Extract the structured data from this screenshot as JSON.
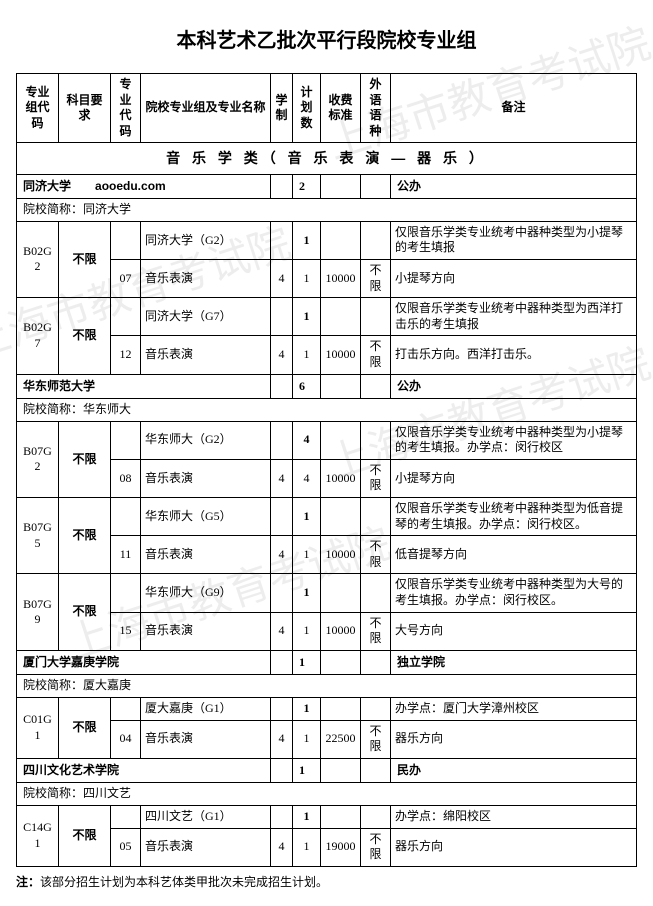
{
  "title": "本科艺术乙批次平行段院校专业组",
  "watermark": "上海市教育考试院",
  "aooedu": "aooedu.com",
  "headers": {
    "group_code": "专业组代码",
    "subject_req": "科目要求",
    "pro_code": "专业代码",
    "school_pro_name": "院校专业组及专业名称",
    "duration": "学制",
    "plan": "计划数",
    "fee": "收费标准",
    "lang": "外语语种",
    "note": "备注"
  },
  "section_title": "音 乐 学 类（ 音 乐 表 演 — 器 乐 ）",
  "alias_prefix": "院校简称：",
  "schools": [
    {
      "name": "同济大学",
      "alias": "同济大学",
      "plan_total": "2",
      "school_note": "公办",
      "groups": [
        {
          "code": "B02G2",
          "subj": "不限",
          "group_name": "同济大学（G2）",
          "group_plan": "1",
          "group_note": "仅限音乐学类专业统考中器种类型为小提琴的考生填报",
          "lines": [
            {
              "pcode": "07",
              "pname": "音乐表演",
              "dur": "4",
              "plan": "1",
              "fee": "10000",
              "lang": "不限",
              "note": "小提琴方向"
            }
          ]
        },
        {
          "code": "B02G7",
          "subj": "不限",
          "group_name": "同济大学（G7）",
          "group_plan": "1",
          "group_note": "仅限音乐学类专业统考中器种类型为西洋打击乐的考生填报",
          "lines": [
            {
              "pcode": "12",
              "pname": "音乐表演",
              "dur": "4",
              "plan": "1",
              "fee": "10000",
              "lang": "不限",
              "note": "打击乐方向。西洋打击乐。"
            }
          ]
        }
      ]
    },
    {
      "name": "华东师范大学",
      "alias": "华东师大",
      "plan_total": "6",
      "school_note": "公办",
      "groups": [
        {
          "code": "B07G2",
          "subj": "不限",
          "group_name": "华东师大（G2）",
          "group_plan": "4",
          "group_note": "仅限音乐学类专业统考中器种类型为小提琴的考生填报。办学点：闵行校区",
          "lines": [
            {
              "pcode": "08",
              "pname": "音乐表演",
              "dur": "4",
              "plan": "4",
              "fee": "10000",
              "lang": "不限",
              "note": "小提琴方向"
            }
          ]
        },
        {
          "code": "B07G5",
          "subj": "不限",
          "group_name": "华东师大（G5）",
          "group_plan": "1",
          "group_note": "仅限音乐学类专业统考中器种类型为低音提琴的考生填报。办学点：闵行校区。",
          "lines": [
            {
              "pcode": "11",
              "pname": "音乐表演",
              "dur": "4",
              "plan": "1",
              "fee": "10000",
              "lang": "不限",
              "note": "低音提琴方向"
            }
          ]
        },
        {
          "code": "B07G9",
          "subj": "不限",
          "group_name": "华东师大（G9）",
          "group_plan": "1",
          "group_note": "仅限音乐学类专业统考中器种类型为大号的考生填报。办学点：闵行校区。",
          "lines": [
            {
              "pcode": "15",
              "pname": "音乐表演",
              "dur": "4",
              "plan": "1",
              "fee": "10000",
              "lang": "不限",
              "note": "大号方向"
            }
          ]
        }
      ]
    },
    {
      "name": "厦门大学嘉庚学院",
      "alias": "厦大嘉庚",
      "plan_total": "1",
      "school_note": "独立学院",
      "groups": [
        {
          "code": "C01G1",
          "subj": "不限",
          "group_name": "厦大嘉庚（G1）",
          "group_plan": "1",
          "group_note": "办学点：厦门大学漳州校区",
          "lines": [
            {
              "pcode": "04",
              "pname": "音乐表演",
              "dur": "4",
              "plan": "1",
              "fee": "22500",
              "lang": "不限",
              "note": "器乐方向"
            }
          ]
        }
      ]
    },
    {
      "name": "四川文化艺术学院",
      "alias": "四川文艺",
      "plan_total": "1",
      "school_note": "民办",
      "groups": [
        {
          "code": "C14G1",
          "subj": "不限",
          "group_name": "四川文艺（G1）",
          "group_plan": "1",
          "group_note": "办学点：绵阳校区",
          "lines": [
            {
              "pcode": "05",
              "pname": "音乐表演",
              "dur": "4",
              "plan": "1",
              "fee": "19000",
              "lang": "不限",
              "note": "器乐方向"
            }
          ]
        }
      ]
    }
  ],
  "footnote_label": "注：",
  "footnote_text": "该部分招生计划为本科艺体类甲批次未完成招生计划。"
}
